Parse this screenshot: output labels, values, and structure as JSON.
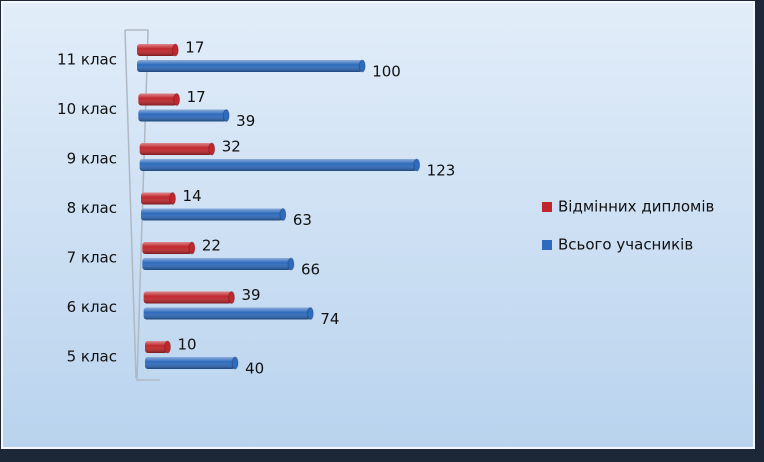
{
  "chart_data": {
    "type": "bar",
    "orientation": "horizontal",
    "categories": [
      "5 клас",
      "6 клас",
      "7 клас",
      "8 клас",
      "9 клас",
      "10 клас",
      "11 клас"
    ],
    "series": [
      {
        "name": "Відмінних дипломів",
        "color": "#c0272d",
        "values": [
          10,
          39,
          22,
          14,
          32,
          17,
          17
        ]
      },
      {
        "name": "Всього учасників",
        "color": "#2e6bbd",
        "values": [
          40,
          74,
          66,
          63,
          123,
          39,
          100
        ]
      }
    ],
    "legend": "right"
  }
}
